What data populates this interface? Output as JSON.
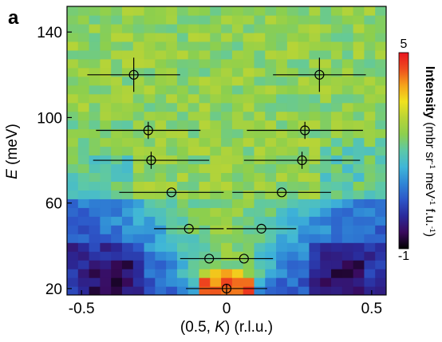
{
  "panel_label": "a",
  "chart_data": {
    "type": "heatmap",
    "xlabel_prefix": "(0.5, ",
    "xlabel_var": "K",
    "xlabel_suffix": ") (r.l.u.)",
    "ylabel_var": "E",
    "ylabel_suffix": " (meV)",
    "xlim": [
      -0.55,
      0.55
    ],
    "ylim": [
      17,
      152
    ],
    "x_ticks": [
      -0.5,
      0,
      0.5
    ],
    "x_tick_labels": [
      "-0.5",
      "0",
      "0.5"
    ],
    "y_ticks": [
      20,
      60,
      100,
      140
    ],
    "y_tick_labels": [
      "20",
      "60",
      "100",
      "140"
    ],
    "colorbar": {
      "min": -1,
      "max": 5,
      "min_label": "-1",
      "max_label": "5",
      "label_bold": "Intensity",
      "label_rest": " (mbr sr",
      "label_sup1": "-1",
      "label_mid": " meV",
      "label_sup2": "-1",
      "label_end": " f.u.",
      "label_sup3": "-1",
      "label_close": ")",
      "colors": [
        "#000000",
        "#3a0a5c",
        "#2a2a9a",
        "#2d56c8",
        "#2f86d6",
        "#3fb6d8",
        "#5cc8a8",
        "#8ccf4e",
        "#b8d436",
        "#f0e21e",
        "#f5a31a",
        "#ee4d1e",
        "#e8141e"
      ]
    },
    "grid": false,
    "dispersion_points": [
      {
        "k": -0.32,
        "e": 120,
        "k_err": 0.16,
        "e_err": 8
      },
      {
        "k": 0.32,
        "e": 120,
        "k_err": 0.16,
        "e_err": 8
      },
      {
        "k": -0.27,
        "e": 94,
        "k_err": 0.18,
        "e_err": 4
      },
      {
        "k": 0.27,
        "e": 94,
        "k_err": 0.2,
        "e_err": 4
      },
      {
        "k": -0.26,
        "e": 80,
        "k_err": 0.2,
        "e_err": 4
      },
      {
        "k": 0.26,
        "e": 80,
        "k_err": 0.2,
        "e_err": 4
      },
      {
        "k": -0.19,
        "e": 65,
        "k_err": 0.18,
        "e_err": 0
      },
      {
        "k": 0.19,
        "e": 65,
        "k_err": 0.17,
        "e_err": 0
      },
      {
        "k": -0.13,
        "e": 48,
        "k_err": 0.12,
        "e_err": 0
      },
      {
        "k": 0.12,
        "e": 48,
        "k_err": 0.12,
        "e_err": 0
      },
      {
        "k": -0.06,
        "e": 34,
        "k_err": 0.1,
        "e_err": 0
      },
      {
        "k": 0.06,
        "e": 34,
        "k_err": 0.1,
        "e_err": 0
      },
      {
        "k": 0.0,
        "e": 20,
        "k_err": 0.14,
        "e_err": 2
      }
    ]
  }
}
